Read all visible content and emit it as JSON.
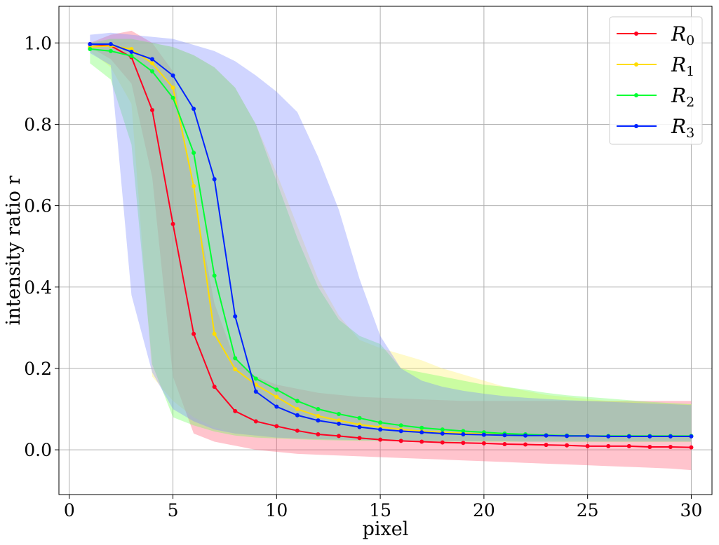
{
  "chart_data": {
    "type": "line",
    "title": "",
    "xlabel": "pixel",
    "ylabel": "intensity ratio r",
    "xlim": [
      -0.5,
      31.0
    ],
    "ylim": [
      -0.11,
      1.09
    ],
    "xticks": [
      0,
      5,
      10,
      15,
      20,
      25,
      30
    ],
    "yticks": [
      0.0,
      0.2,
      0.4,
      0.6,
      0.8,
      1.0
    ],
    "grid": true,
    "legend_position": "top-right",
    "x": [
      1,
      2,
      3,
      4,
      5,
      6,
      7,
      8,
      9,
      10,
      11,
      12,
      13,
      14,
      15,
      16,
      17,
      18,
      19,
      20,
      21,
      22,
      23,
      24,
      25,
      26,
      27,
      28,
      29,
      30
    ],
    "series": [
      {
        "name": "R",
        "subscript": "0",
        "color": "#ff0022",
        "fill_color": "#ff5570",
        "values": [
          0.997,
          0.993,
          0.965,
          0.835,
          0.555,
          0.285,
          0.155,
          0.095,
          0.07,
          0.058,
          0.047,
          0.038,
          0.034,
          0.029,
          0.025,
          0.022,
          0.02,
          0.018,
          0.017,
          0.016,
          0.014,
          0.013,
          0.012,
          0.011,
          0.009,
          0.009,
          0.009,
          0.007,
          0.007,
          0.006
        ],
        "upper": [
          1.0,
          1.02,
          1.03,
          1.0,
          0.93,
          0.63,
          0.36,
          0.22,
          0.18,
          0.16,
          0.15,
          0.14,
          0.135,
          0.13,
          0.128,
          0.126,
          0.124,
          0.122,
          0.12,
          0.12,
          0.12,
          0.12,
          0.12,
          0.12,
          0.12,
          0.12,
          0.12,
          0.12,
          0.12,
          0.12
        ],
        "lower": [
          0.99,
          0.96,
          0.9,
          0.67,
          0.18,
          0.04,
          0.02,
          0.01,
          0.0,
          -0.005,
          -0.01,
          -0.012,
          -0.014,
          -0.016,
          -0.018,
          -0.02,
          -0.022,
          -0.024,
          -0.026,
          -0.028,
          -0.03,
          -0.032,
          -0.034,
          -0.036,
          -0.038,
          -0.04,
          -0.042,
          -0.044,
          -0.046,
          -0.05
        ]
      },
      {
        "name": "R",
        "subscript": "1",
        "color": "#ffdd00",
        "fill_color": "#fff066",
        "values": [
          0.99,
          0.993,
          0.985,
          0.95,
          0.89,
          0.648,
          0.285,
          0.198,
          0.16,
          0.13,
          0.1,
          0.083,
          0.072,
          0.062,
          0.056,
          0.05,
          0.046,
          0.043,
          0.041,
          0.039,
          0.037,
          0.036,
          0.035,
          0.034,
          0.034,
          0.033,
          0.033,
          0.033,
          0.033,
          0.033
        ],
        "upper": [
          1.0,
          1.01,
          1.01,
          1.0,
          0.99,
          0.97,
          0.94,
          0.89,
          0.8,
          0.68,
          0.55,
          0.42,
          0.33,
          0.27,
          0.25,
          0.235,
          0.22,
          0.2,
          0.185,
          0.17,
          0.155,
          0.145,
          0.135,
          0.13,
          0.125,
          0.12,
          0.118,
          0.116,
          0.114,
          0.112
        ],
        "lower": [
          0.98,
          0.94,
          0.85,
          0.18,
          0.12,
          0.08,
          0.055,
          0.04,
          0.035,
          0.03,
          0.028,
          0.026,
          0.025,
          0.024,
          0.023,
          0.022,
          0.022,
          0.021,
          0.021,
          0.02,
          0.02,
          0.02,
          0.02,
          0.019,
          0.019,
          0.019,
          0.019,
          0.019,
          0.019,
          0.019
        ]
      },
      {
        "name": "R",
        "subscript": "2",
        "color": "#00ff33",
        "fill_color": "#66ff55",
        "values": [
          0.985,
          0.98,
          0.968,
          0.93,
          0.865,
          0.73,
          0.428,
          0.225,
          0.175,
          0.148,
          0.12,
          0.1,
          0.088,
          0.078,
          0.067,
          0.06,
          0.054,
          0.05,
          0.046,
          0.043,
          0.04,
          0.038,
          0.036,
          0.035,
          0.034,
          0.034,
          0.034,
          0.034,
          0.034,
          0.034
        ],
        "upper": [
          1.0,
          1.01,
          1.01,
          1.0,
          0.99,
          0.97,
          0.94,
          0.89,
          0.8,
          0.66,
          0.52,
          0.4,
          0.32,
          0.28,
          0.26,
          0.2,
          0.19,
          0.18,
          0.17,
          0.16,
          0.155,
          0.148,
          0.14,
          0.134,
          0.13,
          0.126,
          0.122,
          0.118,
          0.115,
          0.112
        ],
        "lower": [
          0.95,
          0.91,
          0.75,
          0.21,
          0.08,
          0.06,
          0.045,
          0.035,
          0.03,
          0.028,
          0.026,
          0.024,
          0.023,
          0.022,
          0.022,
          0.021,
          0.021,
          0.02,
          0.02,
          0.02,
          0.02,
          0.02,
          0.02,
          0.02,
          0.02,
          0.02,
          0.02,
          0.02,
          0.02,
          0.02
        ]
      },
      {
        "name": "R",
        "subscript": "3",
        "color": "#0022ff",
        "fill_color": "#7788ff",
        "values": [
          0.997,
          0.997,
          0.978,
          0.96,
          0.92,
          0.838,
          0.665,
          0.328,
          0.143,
          0.106,
          0.085,
          0.072,
          0.064,
          0.056,
          0.05,
          0.046,
          0.043,
          0.04,
          0.038,
          0.037,
          0.036,
          0.035,
          0.035,
          0.034,
          0.034,
          0.033,
          0.033,
          0.033,
          0.033,
          0.033
        ],
        "upper": [
          1.02,
          1.025,
          1.02,
          1.015,
          1.01,
          0.995,
          0.98,
          0.955,
          0.92,
          0.88,
          0.83,
          0.72,
          0.59,
          0.42,
          0.28,
          0.2,
          0.17,
          0.155,
          0.145,
          0.138,
          0.132,
          0.128,
          0.125,
          0.122,
          0.12,
          0.118,
          0.116,
          0.114,
          0.112,
          0.11
        ],
        "lower": [
          0.975,
          0.945,
          0.38,
          0.19,
          0.1,
          0.07,
          0.05,
          0.04,
          0.035,
          0.03,
          0.028,
          0.026,
          0.025,
          0.024,
          0.023,
          0.022,
          0.022,
          0.021,
          0.021,
          0.021,
          0.021,
          0.02,
          0.02,
          0.02,
          0.02,
          0.02,
          0.02,
          0.02,
          0.02,
          0.02
        ]
      }
    ]
  }
}
